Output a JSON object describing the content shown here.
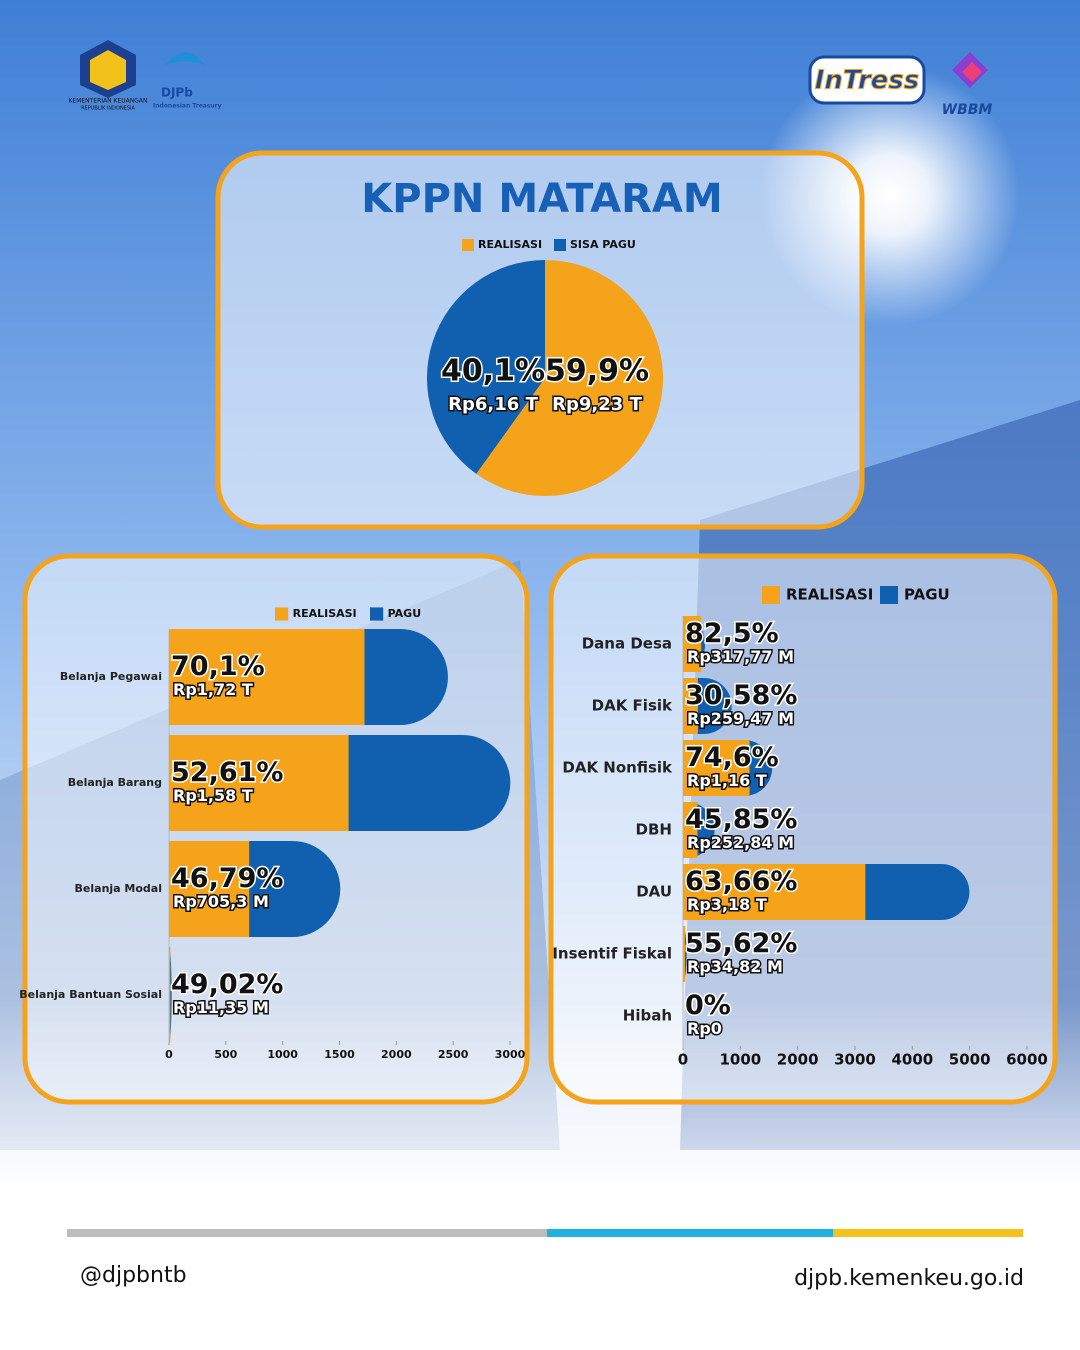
{
  "header": {
    "ministry": "KEMENTERIAN KEUANGAN",
    "ministry_sub": "REPUBLIK INDONESIA",
    "djpb": "DJPb",
    "djpb_sub": "Indonesian Treasury",
    "intress": "InTress",
    "wbbm": "WBBM"
  },
  "chart_data": [
    {
      "type": "pie",
      "title": "KPPN MATARAM",
      "categories": [
        "REALISASI",
        "SISA PAGU"
      ],
      "values": [
        59.9,
        40.1
      ],
      "value_labels": [
        "59,9%",
        "40,1%"
      ],
      "amount_labels": [
        "Rp9,23 T",
        "Rp6,16 T"
      ],
      "colors": [
        "#f5a31a",
        "#1160b0"
      ]
    },
    {
      "type": "bar",
      "orientation": "horizontal",
      "categories": [
        "Belanja Pegawai",
        "Belanja Barang",
        "Belanja Modal",
        "Belanja Bantuan Sosial"
      ],
      "series": [
        {
          "name": "REALISASI",
          "color": "#f5a31a",
          "values": [
            1720,
            1580,
            705.3,
            11.35
          ],
          "value_labels": [
            "Rp1,72 T",
            "Rp1,58 T",
            "Rp705,3 M",
            "Rp11,35 M"
          ]
        },
        {
          "name": "PAGU",
          "color": "#1160b0",
          "values": [
            2454,
            3003,
            1507,
            23.2
          ]
        }
      ],
      "percent_labels": [
        "70,1%",
        "52,61%",
        "46,79%",
        "49,02%"
      ],
      "xlim": [
        0,
        3000
      ],
      "xticks": [
        0,
        500,
        1000,
        1500,
        2000,
        2500,
        3000
      ]
    },
    {
      "type": "bar",
      "orientation": "horizontal",
      "categories": [
        "Dana Desa",
        "DAK Fisik",
        "DAK Nonfisik",
        "DBH",
        "DAU",
        "Insentif Fiskal",
        "Hibah"
      ],
      "series": [
        {
          "name": "REALISASI",
          "color": "#f5a31a",
          "values": [
            317.77,
            259.47,
            1160,
            252.84,
            3180,
            34.82,
            0
          ],
          "value_labels": [
            "Rp317,77 M",
            "Rp259,47 M",
            "Rp1,16 T",
            "Rp252,84 M",
            "Rp3,18 T",
            "Rp34,82 M",
            "Rp0"
          ]
        },
        {
          "name": "PAGU",
          "color": "#1160b0",
          "values": [
            385.2,
            848.5,
            1555,
            551.4,
            4995,
            62.6,
            0
          ]
        }
      ],
      "percent_labels": [
        "82,5%",
        "30,58%",
        "74,6%",
        "45,85%",
        "63,66%",
        "55,62%",
        "0%"
      ],
      "xlim": [
        0,
        6000
      ],
      "xticks": [
        0,
        1000,
        2000,
        3000,
        4000,
        5000,
        6000
      ]
    }
  ],
  "footer": {
    "handle": "@djpbntb",
    "website": "djpb.kemenkeu.go.id"
  }
}
